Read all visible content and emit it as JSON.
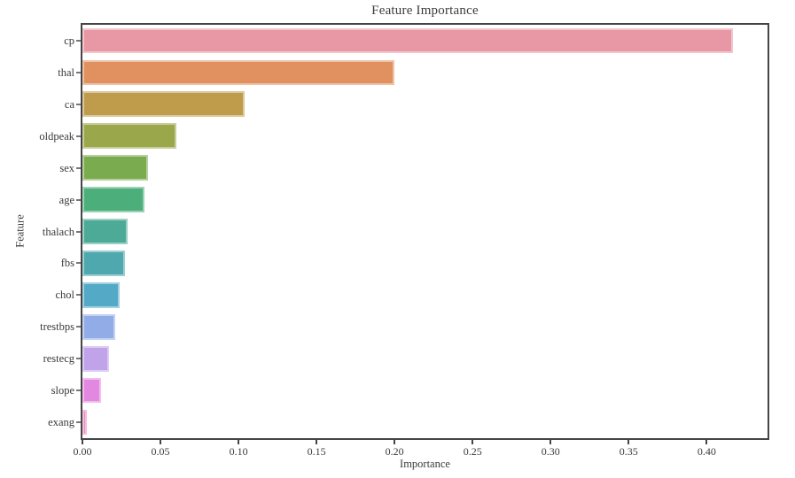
{
  "chart_data": {
    "type": "bar",
    "orientation": "horizontal",
    "title": "Feature Importance",
    "xlabel": "Importance",
    "ylabel": "Feature",
    "categories": [
      "cp",
      "thal",
      "ca",
      "oldpeak",
      "sex",
      "age",
      "thalach",
      "fbs",
      "chol",
      "trestbps",
      "restecg",
      "slope",
      "exang"
    ],
    "values": [
      0.417,
      0.2,
      0.104,
      0.06,
      0.042,
      0.04,
      0.029,
      0.027,
      0.024,
      0.021,
      0.017,
      0.012,
      0.003
    ],
    "bar_colors": [
      "#e897a4",
      "#e1915f",
      "#bf9b4c",
      "#9aa74a",
      "#7aac4f",
      "#4caf7b",
      "#4daa97",
      "#4ea8ad",
      "#54a9c7",
      "#92ace7",
      "#c1a3e9",
      "#e388e0",
      "#e989c0"
    ],
    "xlim": [
      0,
      0.439
    ],
    "xticks": [
      0.0,
      0.05,
      0.1,
      0.15,
      0.2,
      0.25,
      0.3,
      0.35,
      0.4
    ],
    "xtick_labels": [
      "0.00",
      "0.05",
      "0.10",
      "0.15",
      "0.20",
      "0.25",
      "0.30",
      "0.35",
      "0.40"
    ],
    "grid": false,
    "legend": "none"
  },
  "colors": {
    "background": "#ffffff",
    "spine": "#454545",
    "text": "#3b3b3b",
    "y_tick": "#777777",
    "x_tick": "#454545"
  }
}
